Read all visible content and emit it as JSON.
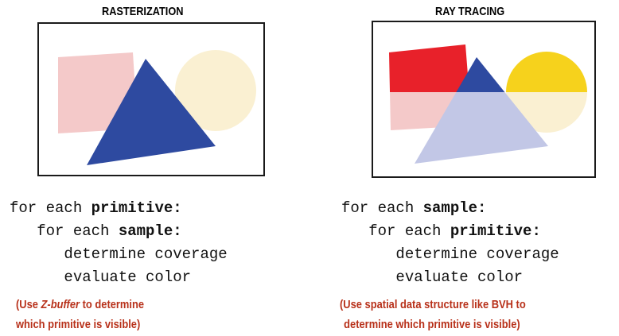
{
  "left": {
    "title": "RASTERIZATION",
    "code": {
      "line1_prefix": "for each ",
      "line1_bold": "primitive:",
      "line2_prefix": "   for each ",
      "line2_bold": "sample:",
      "line3": "      determine coverage",
      "line4": "      evaluate color"
    },
    "note": {
      "part1": "(Use ",
      "part2_italic": "Z-buffer",
      "part3": " to determine",
      "line2": "which primitive is visible)"
    },
    "colors": {
      "square": "#f4c9c9",
      "circle": "#faf0d2",
      "triangle": "#2e4aa0"
    }
  },
  "right": {
    "title": "RAY TRACING",
    "code": {
      "line1_prefix": "for each ",
      "line1_bold": "sample:",
      "line2_prefix": "   for each ",
      "line2_bold": "primitive:",
      "line3": "      determine coverage",
      "line4": "      evaluate color"
    },
    "note": {
      "line1": "(Use spatial data structure like BVH to",
      "line2": "determine which primitive is visible)"
    },
    "colors": {
      "square_top": "#e8212a",
      "square_bottom": "#f4c9c9",
      "circle_top": "#f6d21c",
      "circle_bottom": "#faf0d2",
      "triangle_top": "#2e4aa0",
      "triangle_bottom": "#c2c7e6"
    }
  }
}
